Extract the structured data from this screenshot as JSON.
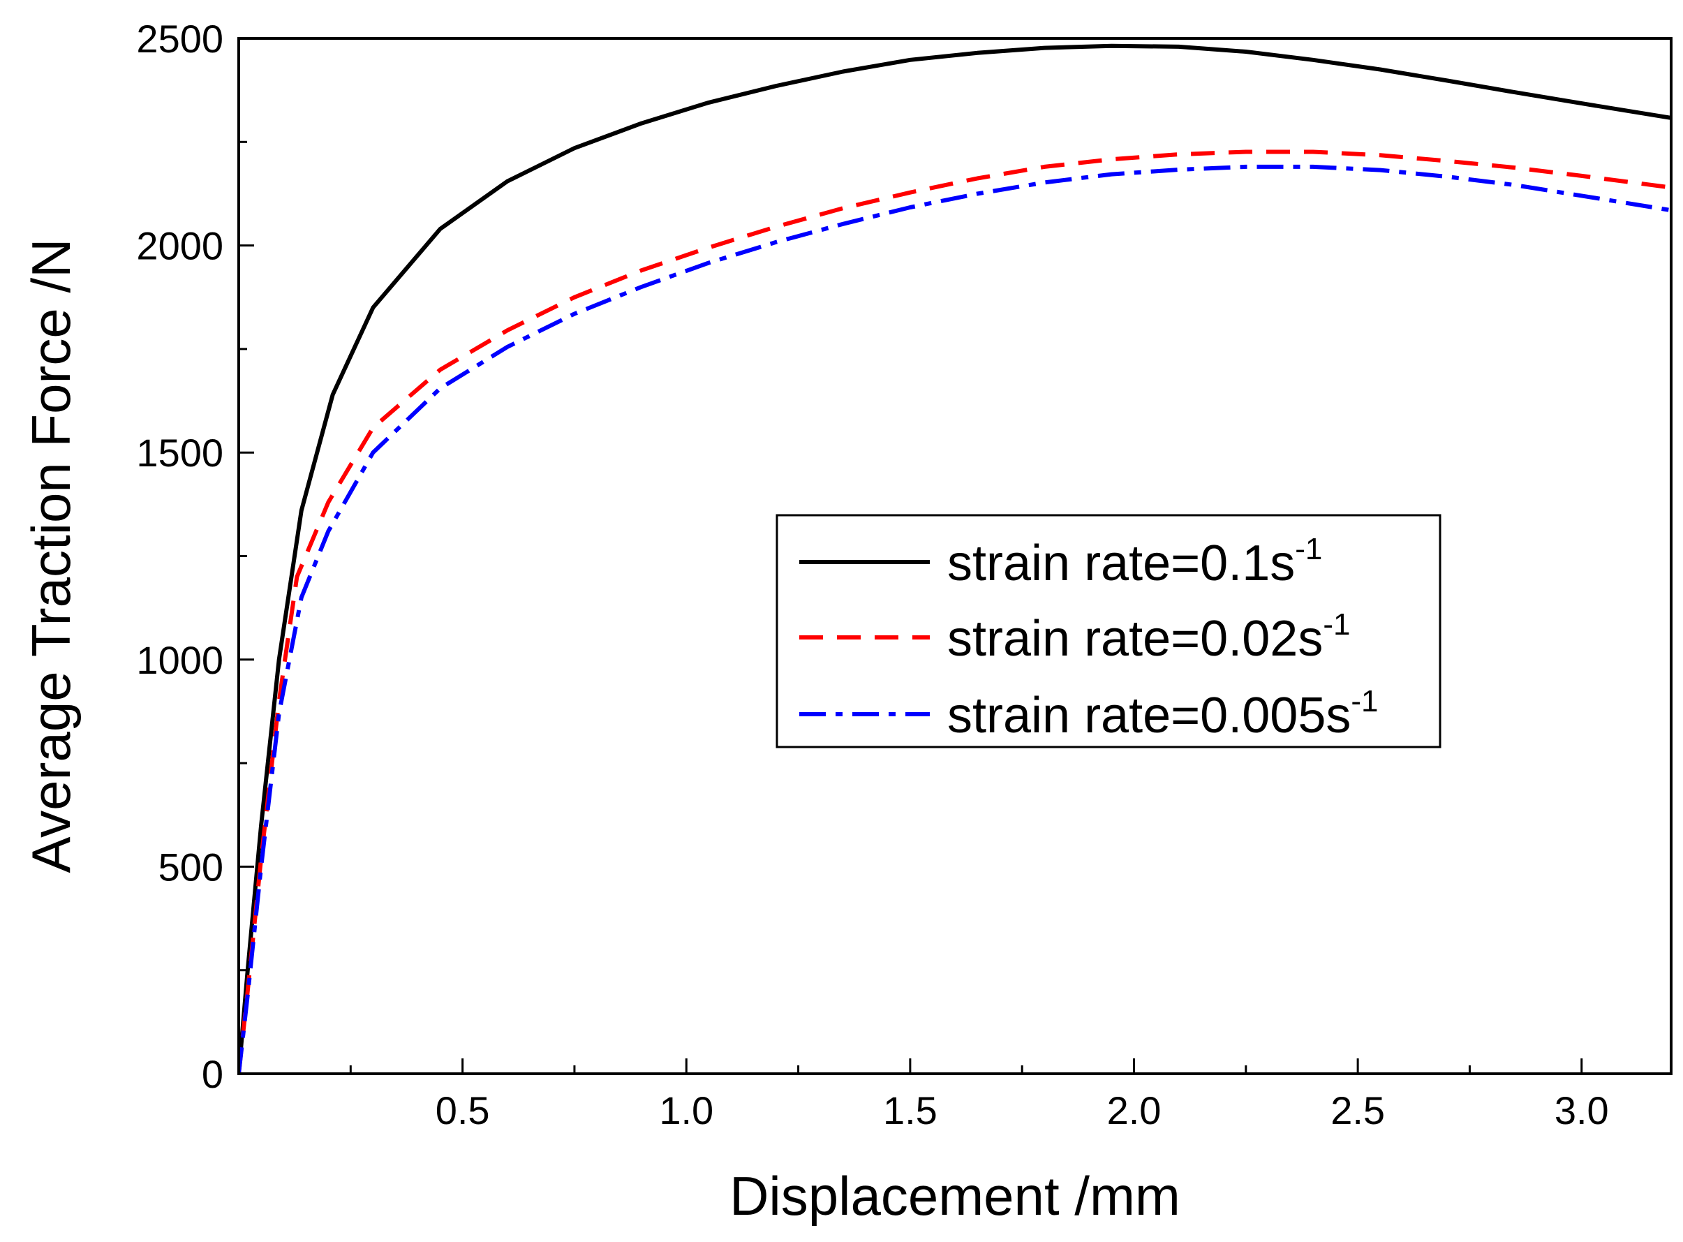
{
  "chart_data": {
    "type": "line",
    "title": "",
    "xlabel": "Displacement  /mm",
    "ylabel": "Average Traction Force  /N",
    "xlim": [
      0,
      3.2
    ],
    "ylim": [
      0,
      2500
    ],
    "grid": false,
    "legend_position": "center-right",
    "x_ticks": [
      {
        "value": 0.5,
        "label": "0.5"
      },
      {
        "value": 1.0,
        "label": "1.0"
      },
      {
        "value": 1.5,
        "label": "1.5"
      },
      {
        "value": 2.0,
        "label": "2.0"
      },
      {
        "value": 2.5,
        "label": "2.5"
      },
      {
        "value": 3.0,
        "label": "3.0"
      }
    ],
    "y_ticks": [
      {
        "value": 0,
        "label": "0"
      },
      {
        "value": 500,
        "label": "500"
      },
      {
        "value": 1000,
        "label": "1000"
      },
      {
        "value": 1500,
        "label": "1500"
      },
      {
        "value": 2000,
        "label": "2000"
      },
      {
        "value": 2500,
        "label": "2500"
      }
    ],
    "series": [
      {
        "name": "strain rate=0.1s",
        "sup": "-1",
        "color": "#000000",
        "dash": "solid",
        "points": [
          [
            0,
            0
          ],
          [
            0.02,
            250
          ],
          [
            0.05,
            600
          ],
          [
            0.09,
            1000
          ],
          [
            0.14,
            1360
          ],
          [
            0.21,
            1640
          ],
          [
            0.3,
            1850
          ],
          [
            0.45,
            2040
          ],
          [
            0.6,
            2155
          ],
          [
            0.75,
            2235
          ],
          [
            0.9,
            2295
          ],
          [
            1.05,
            2345
          ],
          [
            1.2,
            2385
          ],
          [
            1.35,
            2420
          ],
          [
            1.5,
            2448
          ],
          [
            1.65,
            2465
          ],
          [
            1.8,
            2477
          ],
          [
            1.95,
            2482
          ],
          [
            2.1,
            2480
          ],
          [
            2.25,
            2468
          ],
          [
            2.4,
            2448
          ],
          [
            2.55,
            2425
          ],
          [
            2.7,
            2398
          ],
          [
            2.85,
            2370
          ],
          [
            3.0,
            2343
          ],
          [
            3.2,
            2308
          ]
        ]
      },
      {
        "name": "strain rate=0.02s",
        "sup": "-1",
        "color": "#ff0000",
        "dash": "dashed",
        "points": [
          [
            0,
            0
          ],
          [
            0.02,
            200
          ],
          [
            0.05,
            520
          ],
          [
            0.09,
            900
          ],
          [
            0.13,
            1200
          ],
          [
            0.2,
            1380
          ],
          [
            0.3,
            1560
          ],
          [
            0.45,
            1700
          ],
          [
            0.6,
            1795
          ],
          [
            0.75,
            1875
          ],
          [
            0.9,
            1940
          ],
          [
            1.05,
            1995
          ],
          [
            1.2,
            2045
          ],
          [
            1.35,
            2090
          ],
          [
            1.5,
            2128
          ],
          [
            1.65,
            2162
          ],
          [
            1.8,
            2190
          ],
          [
            1.95,
            2208
          ],
          [
            2.1,
            2220
          ],
          [
            2.25,
            2226
          ],
          [
            2.4,
            2226
          ],
          [
            2.55,
            2218
          ],
          [
            2.7,
            2204
          ],
          [
            2.85,
            2188
          ],
          [
            3.0,
            2168
          ],
          [
            3.2,
            2140
          ]
        ]
      },
      {
        "name": "strain rate=0.005s",
        "sup": "-1",
        "color": "#0000ff",
        "dash": "dashdot",
        "points": [
          [
            0,
            0
          ],
          [
            0.02,
            190
          ],
          [
            0.05,
            500
          ],
          [
            0.09,
            870
          ],
          [
            0.14,
            1150
          ],
          [
            0.2,
            1310
          ],
          [
            0.3,
            1500
          ],
          [
            0.45,
            1655
          ],
          [
            0.6,
            1755
          ],
          [
            0.75,
            1835
          ],
          [
            0.9,
            1900
          ],
          [
            1.05,
            1958
          ],
          [
            1.2,
            2008
          ],
          [
            1.35,
            2052
          ],
          [
            1.5,
            2092
          ],
          [
            1.65,
            2125
          ],
          [
            1.8,
            2152
          ],
          [
            1.95,
            2172
          ],
          [
            2.1,
            2183
          ],
          [
            2.25,
            2190
          ],
          [
            2.4,
            2190
          ],
          [
            2.55,
            2182
          ],
          [
            2.7,
            2166
          ],
          [
            2.85,
            2146
          ],
          [
            3.0,
            2120
          ],
          [
            3.2,
            2085
          ]
        ]
      }
    ]
  }
}
